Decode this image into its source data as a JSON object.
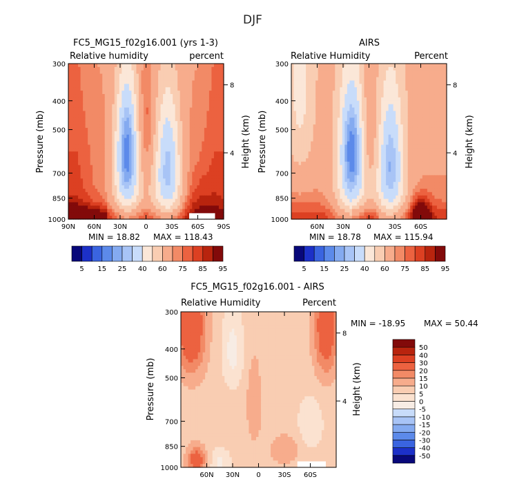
{
  "page": {
    "title": "DJF"
  },
  "colors": {
    "absolute_scale": [
      "#08087a",
      "#1c30c8",
      "#3a64e0",
      "#5c8aea",
      "#84aaf0",
      "#a8c4f6",
      "#c8dcfa",
      "#fbe7d8",
      "#f9cdb2",
      "#f7ac8c",
      "#f28a66",
      "#ec6240",
      "#dc4022",
      "#b8240e",
      "#820a0a"
    ],
    "difference_scale": [
      "#08087a",
      "#1c30c8",
      "#3a64e0",
      "#5c8aea",
      "#84aaf0",
      "#a8c4f6",
      "#c8dcfa",
      "#f7ece4",
      "#fbe2d0",
      "#f9cdb2",
      "#f7ac8c",
      "#f28a66",
      "#ec6240",
      "#dc4022",
      "#b8240e",
      "#820a0a"
    ]
  },
  "chart_data": [
    {
      "type": "heatmap",
      "title": "FC5_MG15_f02g16.001 (yrs 1-3)",
      "left_label": "Relative humidity",
      "right_label": "percent",
      "ylabel": "Pressure (mb)",
      "ylabel_right": "Height (km)",
      "x_ticks": [
        "90N",
        "60N",
        "30N",
        "0",
        "30S",
        "60S",
        "90S"
      ],
      "x_tick_values": [
        90,
        60,
        30,
        0,
        -30,
        -60,
        -90
      ],
      "xlim": [
        90,
        -90
      ],
      "y_ticks": [
        "300",
        "400",
        "500",
        "700",
        "850",
        "1000"
      ],
      "y_tick_values": [
        300,
        400,
        500,
        700,
        850,
        1000
      ],
      "ylim": [
        300,
        1000
      ],
      "y_scale": "log",
      "right_ticks": [
        "8",
        "4"
      ],
      "right_tick_values": [
        8,
        4
      ],
      "min_label": "MIN = 18.82",
      "max_label": "MAX = 118.43",
      "levels": [
        5,
        10,
        15,
        20,
        25,
        30,
        40,
        50,
        60,
        70,
        75,
        80,
        85,
        90,
        95
      ],
      "level_labels": [
        "5",
        "15",
        "25",
        "40",
        "60",
        "75",
        "85",
        "95"
      ],
      "key": "model"
    },
    {
      "type": "heatmap",
      "title": "AIRS",
      "left_label": "Relative Humidity",
      "right_label": "Percent",
      "ylabel": "Pressure (mb)",
      "ylabel_right": "Height (km)",
      "x_ticks": [
        "60N",
        "30N",
        "0",
        "30S",
        "60S"
      ],
      "x_tick_values": [
        60,
        30,
        0,
        -30,
        -60
      ],
      "xlim": [
        90,
        -90
      ],
      "y_ticks": [
        "300",
        "400",
        "500",
        "700",
        "850",
        "1000"
      ],
      "y_tick_values": [
        300,
        400,
        500,
        700,
        850,
        1000
      ],
      "ylim": [
        300,
        1000
      ],
      "y_scale": "log",
      "right_ticks": [
        "8",
        "4"
      ],
      "right_tick_values": [
        8,
        4
      ],
      "min_label": "MIN = 18.78",
      "max_label": "MAX = 115.94",
      "levels": [
        5,
        10,
        15,
        20,
        25,
        30,
        40,
        50,
        60,
        70,
        75,
        80,
        85,
        90,
        95
      ],
      "level_labels": [
        "5",
        "15",
        "25",
        "40",
        "60",
        "75",
        "85",
        "95"
      ],
      "key": "obs"
    },
    {
      "type": "heatmap",
      "title": "FC5_MG15_f02g16.001 - AIRS",
      "left_label": "Relative Humidity",
      "right_label": "Percent",
      "ylabel": "Pressure (mb)",
      "ylabel_right": "Height (km)",
      "x_ticks": [
        "60N",
        "30N",
        "0",
        "30S",
        "60S"
      ],
      "x_tick_values": [
        60,
        30,
        0,
        -30,
        -60
      ],
      "xlim": [
        90,
        -90
      ],
      "y_ticks": [
        "300",
        "400",
        "500",
        "700",
        "850",
        "1000"
      ],
      "y_tick_values": [
        300,
        400,
        500,
        700,
        850,
        1000
      ],
      "ylim": [
        300,
        1000
      ],
      "y_scale": "log",
      "right_ticks": [
        "8",
        "4"
      ],
      "right_tick_values": [
        8,
        4
      ],
      "min_label": "MIN = -18.95",
      "max_label": "MAX =  50.44",
      "levels": [
        -50,
        -40,
        -30,
        -20,
        -15,
        -10,
        -5,
        0,
        5,
        10,
        15,
        20,
        30,
        40,
        50
      ],
      "level_labels": [
        "-50",
        "-40",
        "-30",
        "-20",
        "-15",
        "-10",
        "-5",
        "0",
        "5",
        "10",
        "15",
        "20",
        "30",
        "40",
        "50"
      ],
      "key": "diff"
    }
  ]
}
